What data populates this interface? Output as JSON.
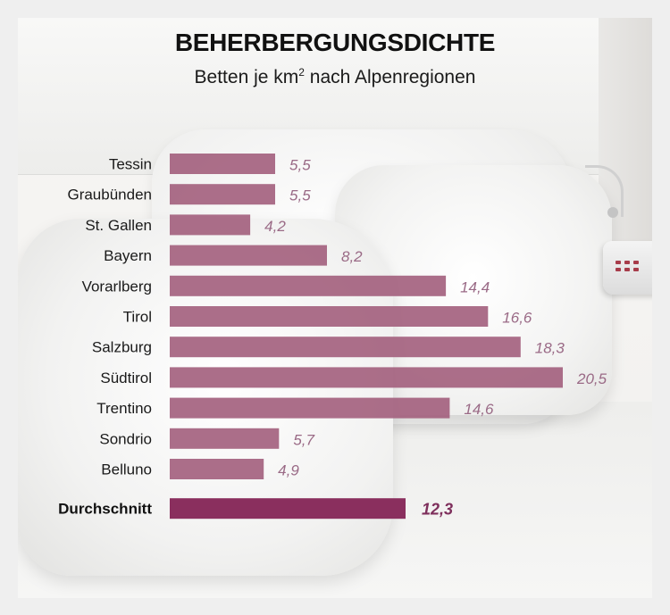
{
  "header": {
    "title": "BEHERBERGUNGSDICHTE",
    "subtitle_pre": "Betten je km",
    "subtitle_sup": "2",
    "subtitle_post": " nach Alpenregionen"
  },
  "colors": {
    "bar": "#a4627f",
    "bar_highlight": "#8a2f5e",
    "value_text": "#9a6a86",
    "value_text_highlight": "#7e2f5c",
    "frame": "#efefef"
  },
  "chart_data": {
    "type": "bar",
    "orientation": "horizontal",
    "title": "BEHERBERGUNGSDICHTE",
    "subtitle": "Betten je km2 nach Alpenregionen",
    "categories": [
      "Tessin",
      "Graubünden",
      "St. Gallen",
      "Bayern",
      "Vorarlberg",
      "Tirol",
      "Salzburg",
      "Südtirol",
      "Trentino",
      "Sondrio",
      "Belluno",
      "Durchschnitt"
    ],
    "values": [
      5.5,
      5.5,
      4.2,
      8.2,
      14.4,
      16.6,
      18.3,
      20.5,
      14.6,
      5.7,
      4.9,
      12.3
    ],
    "value_labels": [
      "5,5",
      "5,5",
      "4,2",
      "8,2",
      "14,4",
      "16,6",
      "18,3",
      "20,5",
      "14,6",
      "5,7",
      "4,9",
      "12,3"
    ],
    "highlight": "Durchschnitt",
    "xlim": [
      0,
      20.5
    ],
    "grid": false,
    "legend": "none"
  }
}
